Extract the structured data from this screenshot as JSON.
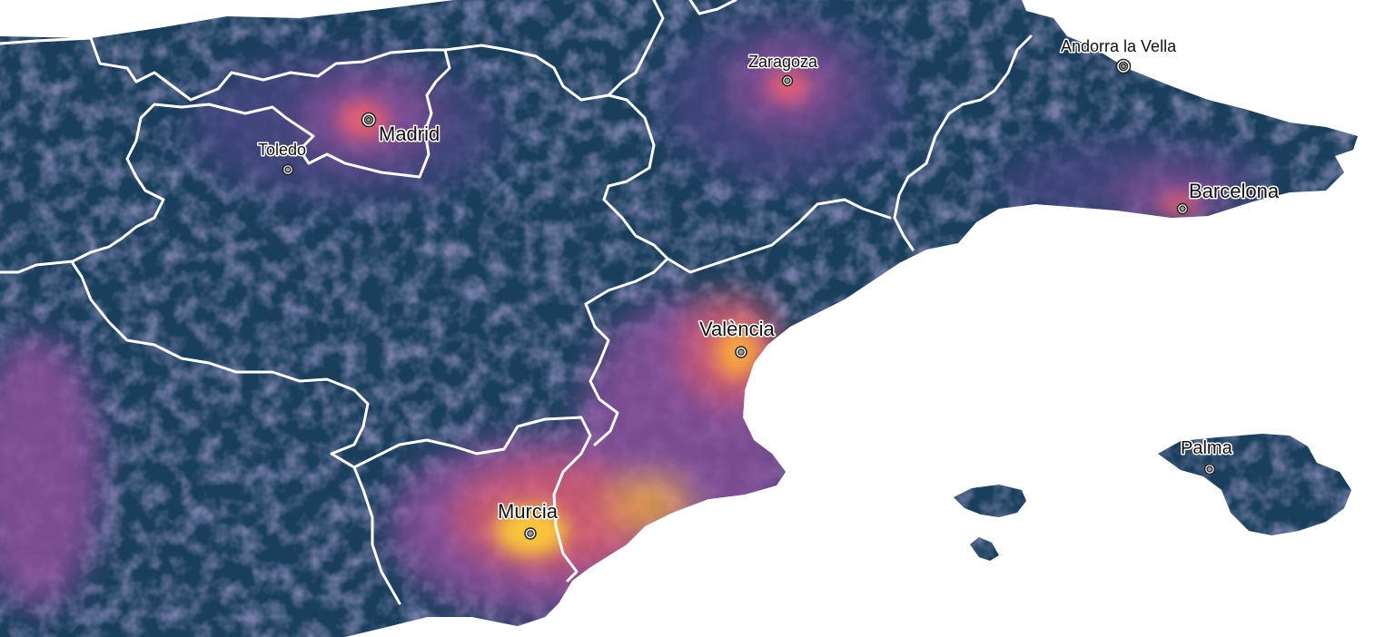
{
  "map": {
    "colors": {
      "sea": "#ffffff",
      "land": "#1a3f5c",
      "density_low": "#44447f",
      "density_mid": "#8b4f9c",
      "density_high": "#e35d74",
      "density_peak": "#f7a440",
      "density_max": "#f9c53a",
      "border": "#ffffff"
    },
    "cities": [
      {
        "id": "madrid",
        "name": "Madrid",
        "capital": true
      },
      {
        "id": "toledo",
        "name": "Toledo",
        "capital": false
      },
      {
        "id": "zaragoza",
        "name": "Zaragoza",
        "capital": false
      },
      {
        "id": "andorra",
        "name": "Andorra la Vella",
        "capital": true
      },
      {
        "id": "barcelona",
        "name": "Barcelona",
        "capital": false
      },
      {
        "id": "valencia",
        "name": "València",
        "capital": false
      },
      {
        "id": "murcia",
        "name": "Murcia",
        "capital": false
      },
      {
        "id": "palma",
        "name": "Palma",
        "capital": false
      }
    ]
  }
}
